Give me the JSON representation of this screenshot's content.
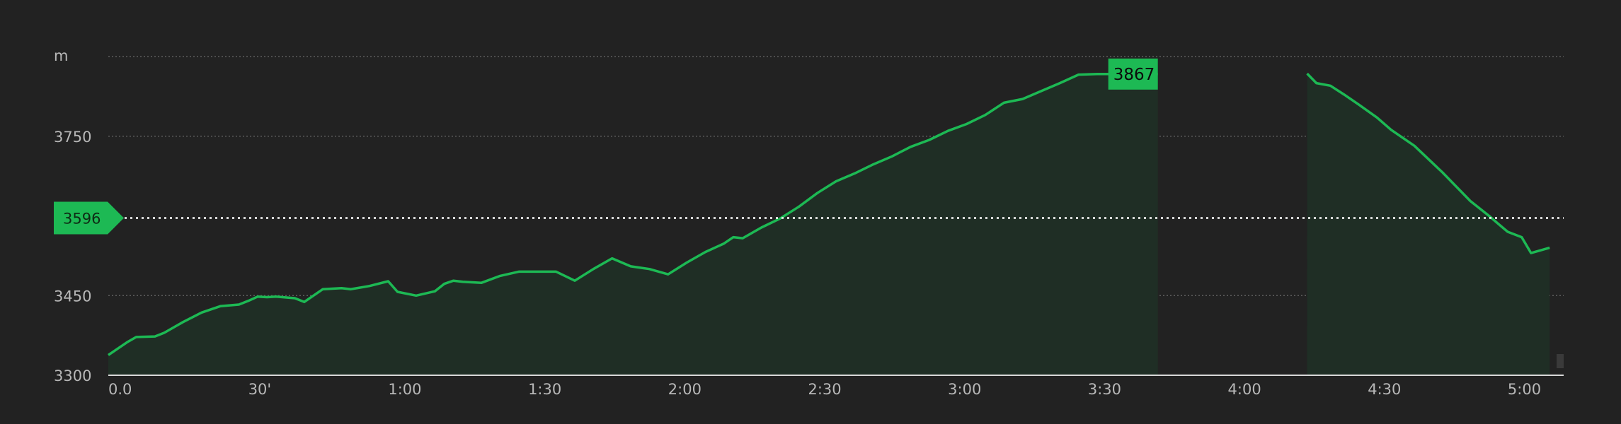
{
  "chart_data": {
    "type": "area",
    "unit_label": "m",
    "ylim": [
      3300,
      3900
    ],
    "yticks": [
      3300,
      3450,
      3750
    ],
    "xlim": [
      0,
      312
    ],
    "xticks": [
      {
        "v": 0,
        "label": "0.0"
      },
      {
        "v": 30,
        "label": "30'"
      },
      {
        "v": 60,
        "label": "1:00"
      },
      {
        "v": 90,
        "label": "1:30"
      },
      {
        "v": 120,
        "label": "2:00"
      },
      {
        "v": 150,
        "label": "2:30"
      },
      {
        "v": 180,
        "label": "3:00"
      },
      {
        "v": 210,
        "label": "3:30"
      },
      {
        "v": 240,
        "label": "4:00"
      },
      {
        "v": 270,
        "label": "4:30"
      },
      {
        "v": 300,
        "label": "5:00"
      }
    ],
    "reference_value": "3596",
    "max_value": "3867",
    "line_color": "#1db954",
    "fill_color": "#1f2e25",
    "grid": true,
    "segments": [
      {
        "x": [
          0,
          4,
          6,
          10,
          12,
          16,
          20,
          24,
          28,
          30,
          32,
          34,
          36,
          40,
          42,
          46,
          50,
          52,
          56,
          60,
          62,
          66,
          70,
          72,
          74,
          76,
          80,
          84,
          88,
          90,
          92,
          94,
          96,
          100,
          104,
          108,
          112,
          116,
          120,
          124,
          128,
          132,
          134,
          136,
          140,
          144,
          148,
          152,
          156,
          160,
          164,
          168,
          172,
          176,
          180,
          184,
          188,
          192,
          196,
          200,
          204,
          208,
          212,
          216,
          220,
          225
        ],
        "y": [
          3338,
          3362,
          3372,
          3373,
          3380,
          3400,
          3418,
          3430,
          3433,
          3440,
          3448,
          3447,
          3448,
          3445,
          3438,
          3462,
          3464,
          3462,
          3468,
          3477,
          3457,
          3450,
          3458,
          3472,
          3478,
          3476,
          3474,
          3487,
          3495,
          3495,
          3495,
          3495,
          3495,
          3478,
          3500,
          3520,
          3505,
          3500,
          3490,
          3512,
          3532,
          3548,
          3560,
          3558,
          3578,
          3595,
          3617,
          3643,
          3665,
          3680,
          3697,
          3712,
          3730,
          3743,
          3760,
          3773,
          3790,
          3813,
          3820,
          3835,
          3850,
          3866,
          3867,
          3867,
          3867,
          3867
        ]
      },
      {
        "x": [
          257,
          259,
          262,
          265,
          268,
          272,
          275,
          280,
          286,
          292,
          296,
          298,
          300,
          303,
          305,
          309
        ],
        "y": [
          3868,
          3850,
          3845,
          3828,
          3810,
          3785,
          3762,
          3732,
          3682,
          3628,
          3600,
          3585,
          3570,
          3560,
          3530,
          3540
        ]
      }
    ]
  }
}
